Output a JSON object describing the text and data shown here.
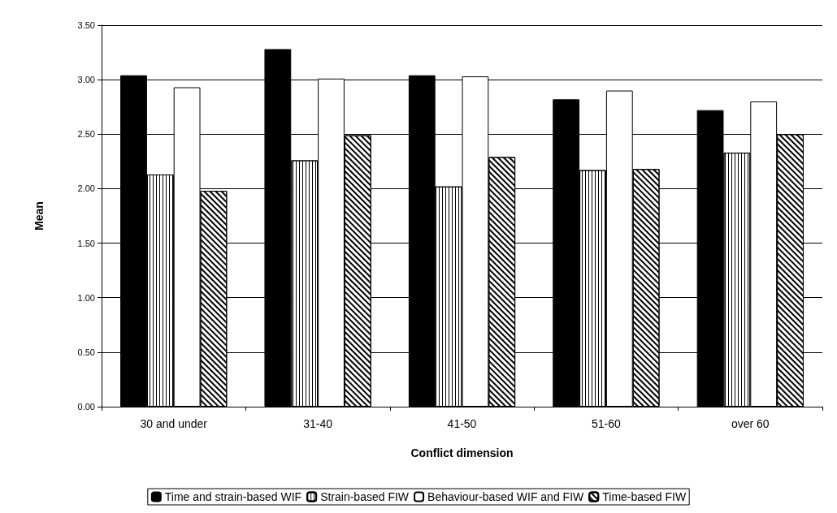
{
  "chart_data": {
    "type": "bar",
    "xlabel": "Conflict dimension",
    "ylabel": "Mean",
    "categories": [
      "30 and under",
      "31-40",
      "41-50",
      "51-60",
      "over 60"
    ],
    "series": [
      {
        "name": "Time and strain-based WIF",
        "color": "#000000",
        "values": [
          3.04,
          3.28,
          3.04,
          2.82,
          2.72
        ]
      },
      {
        "name": "Strain-based FIW",
        "color": "#ffffff",
        "values": [
          2.13,
          2.26,
          2.02,
          2.17,
          2.33
        ]
      },
      {
        "name": "Behaviour-based WIF and FIW",
        "color": "#ffffff",
        "values": [
          2.93,
          3.01,
          3.03,
          2.9,
          2.8
        ]
      },
      {
        "name": "Time-based FIW",
        "color": "#ffffff",
        "values": [
          1.98,
          2.49,
          2.29,
          2.18,
          2.5
        ]
      }
    ],
    "ylim": [
      0,
      3.5
    ],
    "yticks": [
      {
        "value": 0,
        "label": "0.00"
      },
      {
        "value": 0.5,
        "label": "0.50"
      },
      {
        "value": 1,
        "label": "1.00"
      },
      {
        "value": 1.5,
        "label": "1.50"
      },
      {
        "value": 2,
        "label": "2.00"
      },
      {
        "value": 2.5,
        "label": "2.50"
      },
      {
        "value": 3,
        "label": "3.00"
      },
      {
        "value": 3.5,
        "label": "3.50"
      }
    ],
    "grid": "y",
    "legend": "bottom"
  }
}
